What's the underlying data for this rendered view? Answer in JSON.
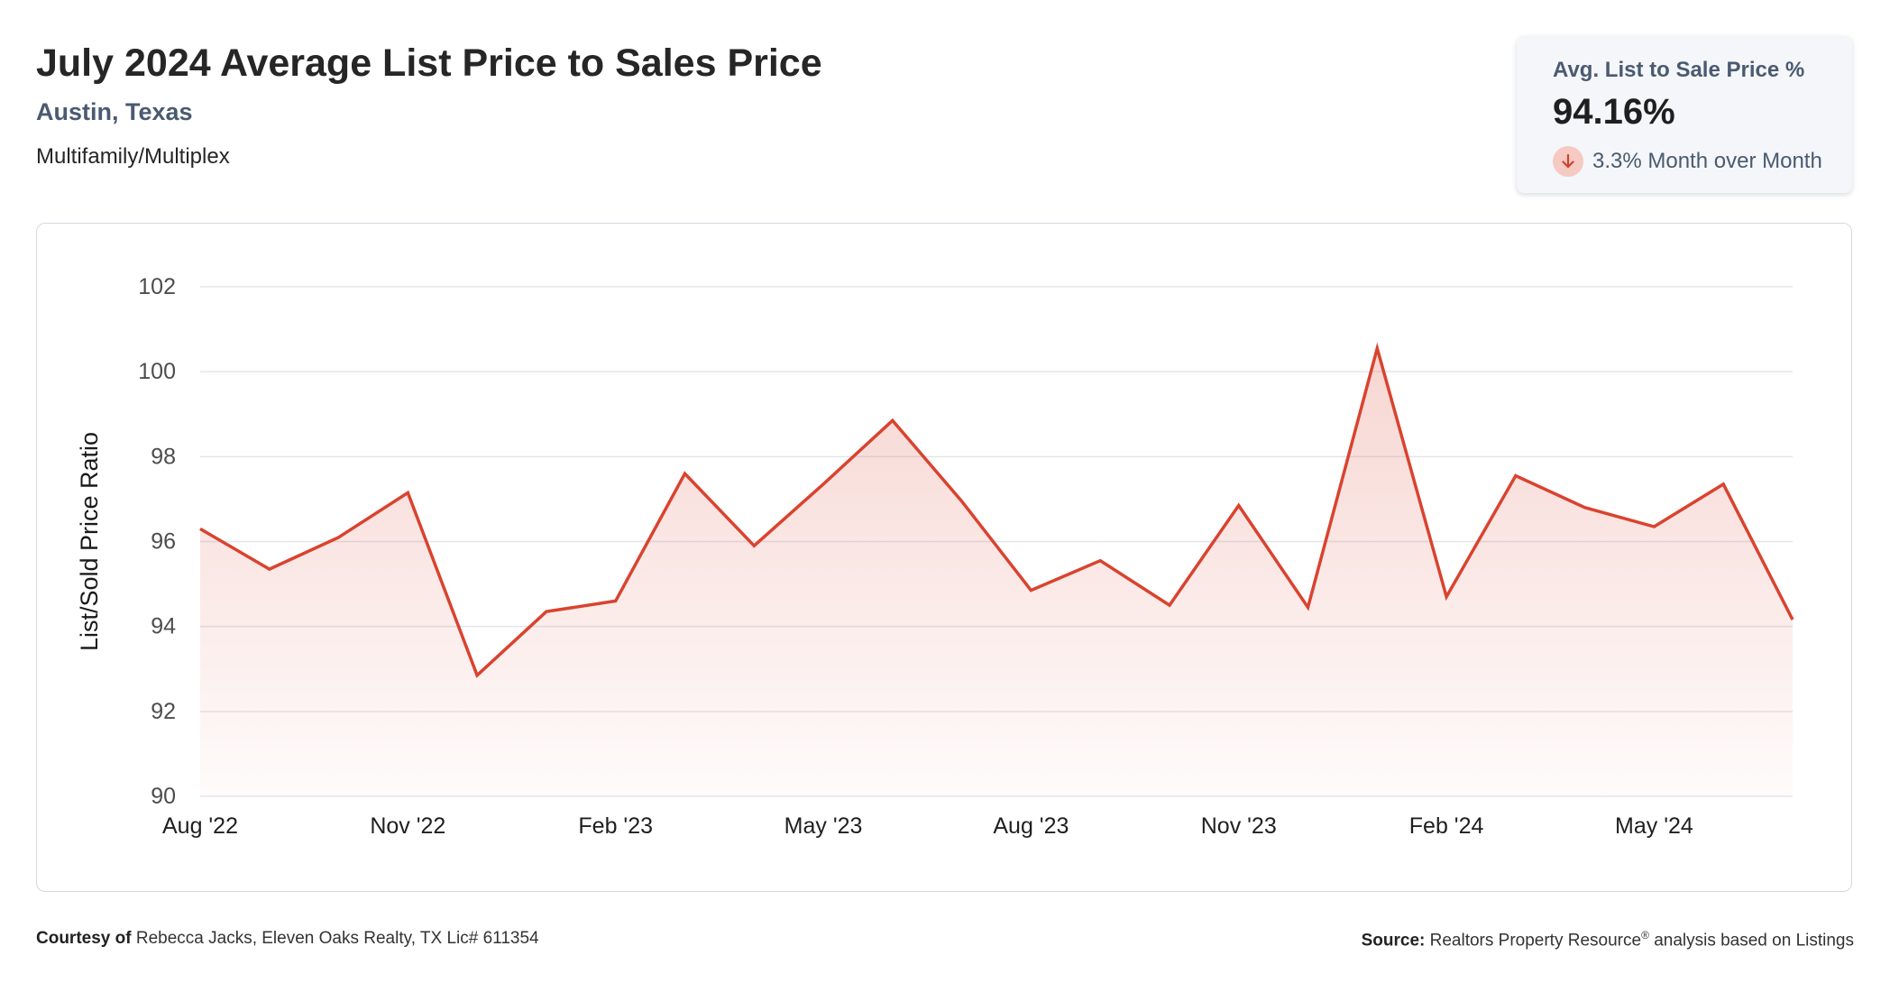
{
  "header": {
    "title": "July 2024 Average List Price to Sales Price",
    "location": "Austin, Texas",
    "property_type": "Multifamily/Multiplex"
  },
  "stat": {
    "label": "Avg. List to Sale Price %",
    "value": "94.16%",
    "change": "3.3% Month over Month",
    "change_icon": "arrow-down-icon",
    "change_color": "#c9452f"
  },
  "chart_data": {
    "type": "area",
    "title": "",
    "xlabel": "",
    "ylabel": "List/Sold Price Ratio",
    "ylim": [
      90,
      102
    ],
    "yticks": [
      "102",
      "100",
      "98",
      "96",
      "94",
      "92",
      "90"
    ],
    "xtick_labels": [
      "Aug '22",
      "Nov '22",
      "Feb '23",
      "May '23",
      "Aug '23",
      "Nov '23",
      "Feb '24",
      "May '24"
    ],
    "grid": true,
    "line_color": "#d9432f",
    "x": [
      "2022-08",
      "2022-09",
      "2022-10",
      "2022-11",
      "2022-12",
      "2023-01",
      "2023-02",
      "2023-03",
      "2023-04",
      "2023-05",
      "2023-06",
      "2023-07",
      "2023-08",
      "2023-09",
      "2023-10",
      "2023-11",
      "2023-12",
      "2024-01",
      "2024-02",
      "2024-03",
      "2024-04",
      "2024-05",
      "2024-06",
      "2024-07"
    ],
    "values": [
      96.3,
      95.35,
      96.1,
      97.15,
      92.85,
      94.35,
      94.6,
      97.6,
      95.9,
      97.35,
      98.85,
      96.95,
      94.85,
      95.55,
      94.5,
      96.85,
      94.45,
      100.55,
      94.7,
      97.55,
      96.8,
      96.35,
      97.35,
      94.16
    ]
  },
  "footer": {
    "courtesy_label": "Courtesy of",
    "courtesy_text": "Rebecca Jacks, Eleven Oaks Realty, TX Lic# 611354",
    "source_label": "Source:",
    "source_text": "Realtors Property Resource",
    "source_mark": "®",
    "source_suffix": "analysis based on Listings"
  }
}
